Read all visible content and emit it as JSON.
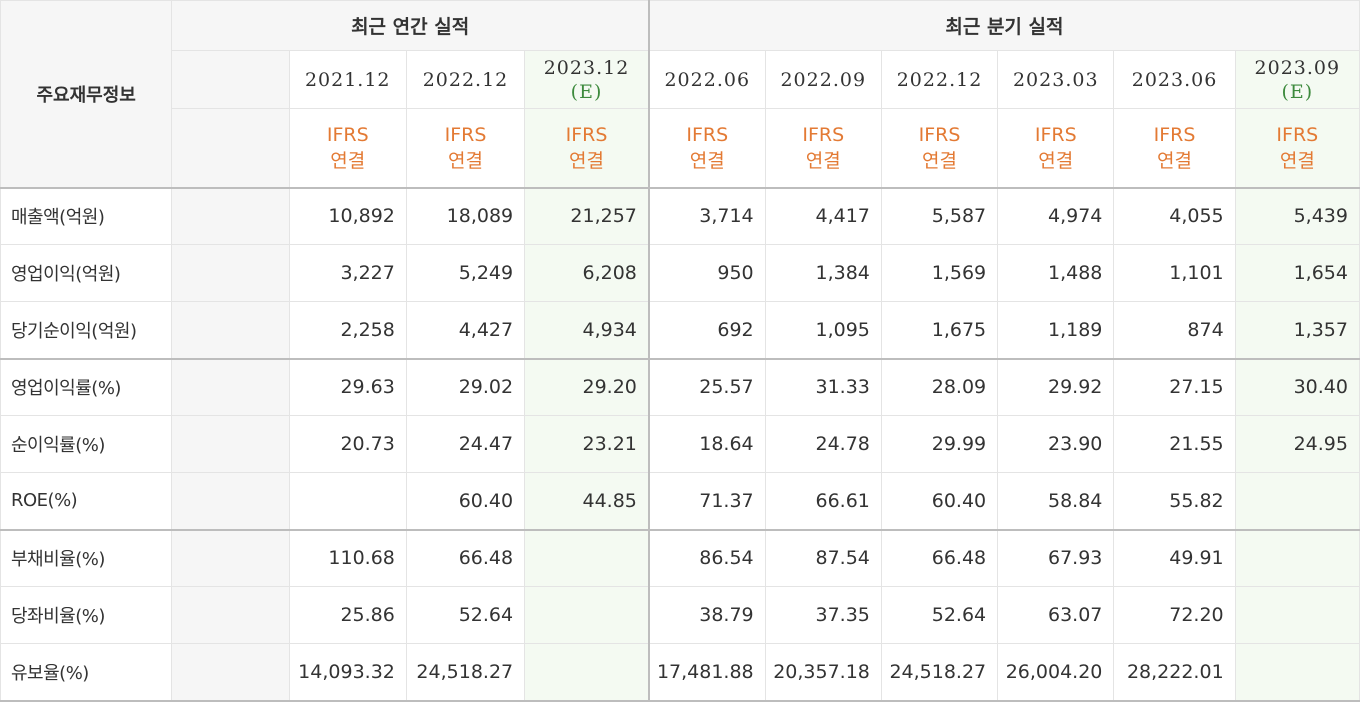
{
  "corner_title": "주요재무정보",
  "annual_header": "최근 연간 실적",
  "quarter_header": "최근 분기 실적",
  "columns": [
    {
      "date": "2021.12",
      "est": "",
      "std1": "IFRS",
      "std2": "연결"
    },
    {
      "date": "2022.12",
      "est": "",
      "std1": "IFRS",
      "std2": "연결"
    },
    {
      "date": "2023.12",
      "est": "(E)",
      "std1": "IFRS",
      "std2": "연결"
    },
    {
      "date": "2022.06",
      "est": "",
      "std1": "IFRS",
      "std2": "연결"
    },
    {
      "date": "2022.09",
      "est": "",
      "std1": "IFRS",
      "std2": "연결"
    },
    {
      "date": "2022.12",
      "est": "",
      "std1": "IFRS",
      "std2": "연결"
    },
    {
      "date": "2023.03",
      "est": "",
      "std1": "IFRS",
      "std2": "연결"
    },
    {
      "date": "2023.06",
      "est": "",
      "std1": "IFRS",
      "std2": "연결"
    },
    {
      "date": "2023.09",
      "est": "(E)",
      "std1": "IFRS",
      "std2": "연결"
    }
  ],
  "rows": [
    {
      "label": "매출액(억원)",
      "values": [
        "10,892",
        "18,089",
        "21,257",
        "3,714",
        "4,417",
        "5,587",
        "4,974",
        "4,055",
        "5,439"
      ]
    },
    {
      "label": "영업이익(억원)",
      "values": [
        "3,227",
        "5,249",
        "6,208",
        "950",
        "1,384",
        "1,569",
        "1,488",
        "1,101",
        "1,654"
      ]
    },
    {
      "label": "당기순이익(억원)",
      "values": [
        "2,258",
        "4,427",
        "4,934",
        "692",
        "1,095",
        "1,675",
        "1,189",
        "874",
        "1,357"
      ]
    },
    {
      "label": "영업이익률(%)",
      "values": [
        "29.63",
        "29.02",
        "29.20",
        "25.57",
        "31.33",
        "28.09",
        "29.92",
        "27.15",
        "30.40"
      ]
    },
    {
      "label": "순이익률(%)",
      "values": [
        "20.73",
        "24.47",
        "23.21",
        "18.64",
        "24.78",
        "29.99",
        "23.90",
        "21.55",
        "24.95"
      ]
    },
    {
      "label": "ROE(%)",
      "values": [
        "",
        "60.40",
        "44.85",
        "71.37",
        "66.61",
        "60.40",
        "58.84",
        "55.82",
        ""
      ]
    },
    {
      "label": "부채비율(%)",
      "values": [
        "110.68",
        "66.48",
        "",
        "86.54",
        "87.54",
        "66.48",
        "67.93",
        "49.91",
        ""
      ]
    },
    {
      "label": "당좌비율(%)",
      "values": [
        "25.86",
        "52.64",
        "",
        "38.79",
        "37.35",
        "52.64",
        "63.07",
        "72.20",
        ""
      ]
    },
    {
      "label": "유보율(%)",
      "values": [
        "14,093.32",
        "24,518.27",
        "",
        "17,481.88",
        "20,357.18",
        "24,518.27",
        "26,004.20",
        "28,222.01",
        ""
      ]
    }
  ]
}
